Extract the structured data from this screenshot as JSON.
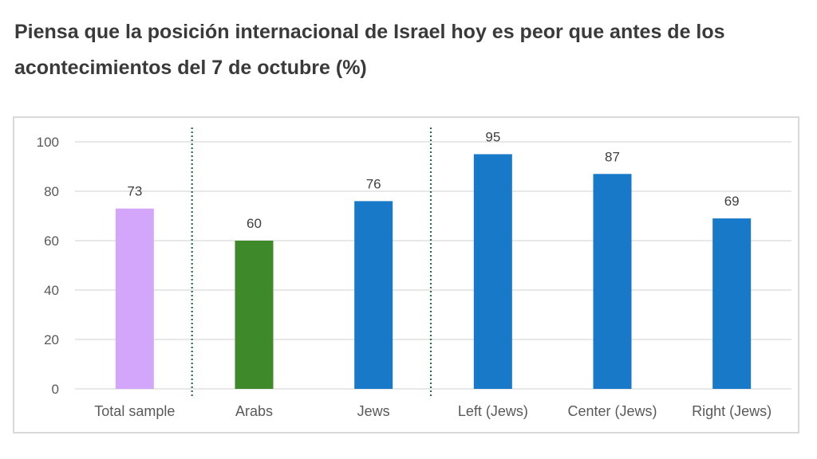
{
  "title": "Piensa que la posición internacional de Israel hoy es peor que antes de los acontecimientos del 7 de octubre (%)",
  "chart_data": {
    "type": "bar",
    "title": "Piensa que la posición internacional de Israel hoy es peor que antes de los acontecimientos del 7 de octubre (%)",
    "xlabel": "",
    "ylabel": "",
    "ylim": [
      0,
      100
    ],
    "yticks": [
      0,
      20,
      40,
      60,
      80,
      100
    ],
    "grid": true,
    "legend": "none",
    "categories": [
      "Total sample",
      "Arabs",
      "Jews",
      "Left (Jews)",
      "Center (Jews)",
      "Right (Jews)"
    ],
    "values": [
      73,
      60,
      76,
      95,
      87,
      69
    ],
    "colors": [
      "#d4a6fb",
      "#3e8a2a",
      "#1979c9",
      "#1979c9",
      "#1979c9",
      "#1979c9"
    ],
    "separators_after": [
      "Total sample",
      "Jews"
    ],
    "separator_color": "#2e6f4a",
    "gridline_color": "#d9d9d9"
  }
}
